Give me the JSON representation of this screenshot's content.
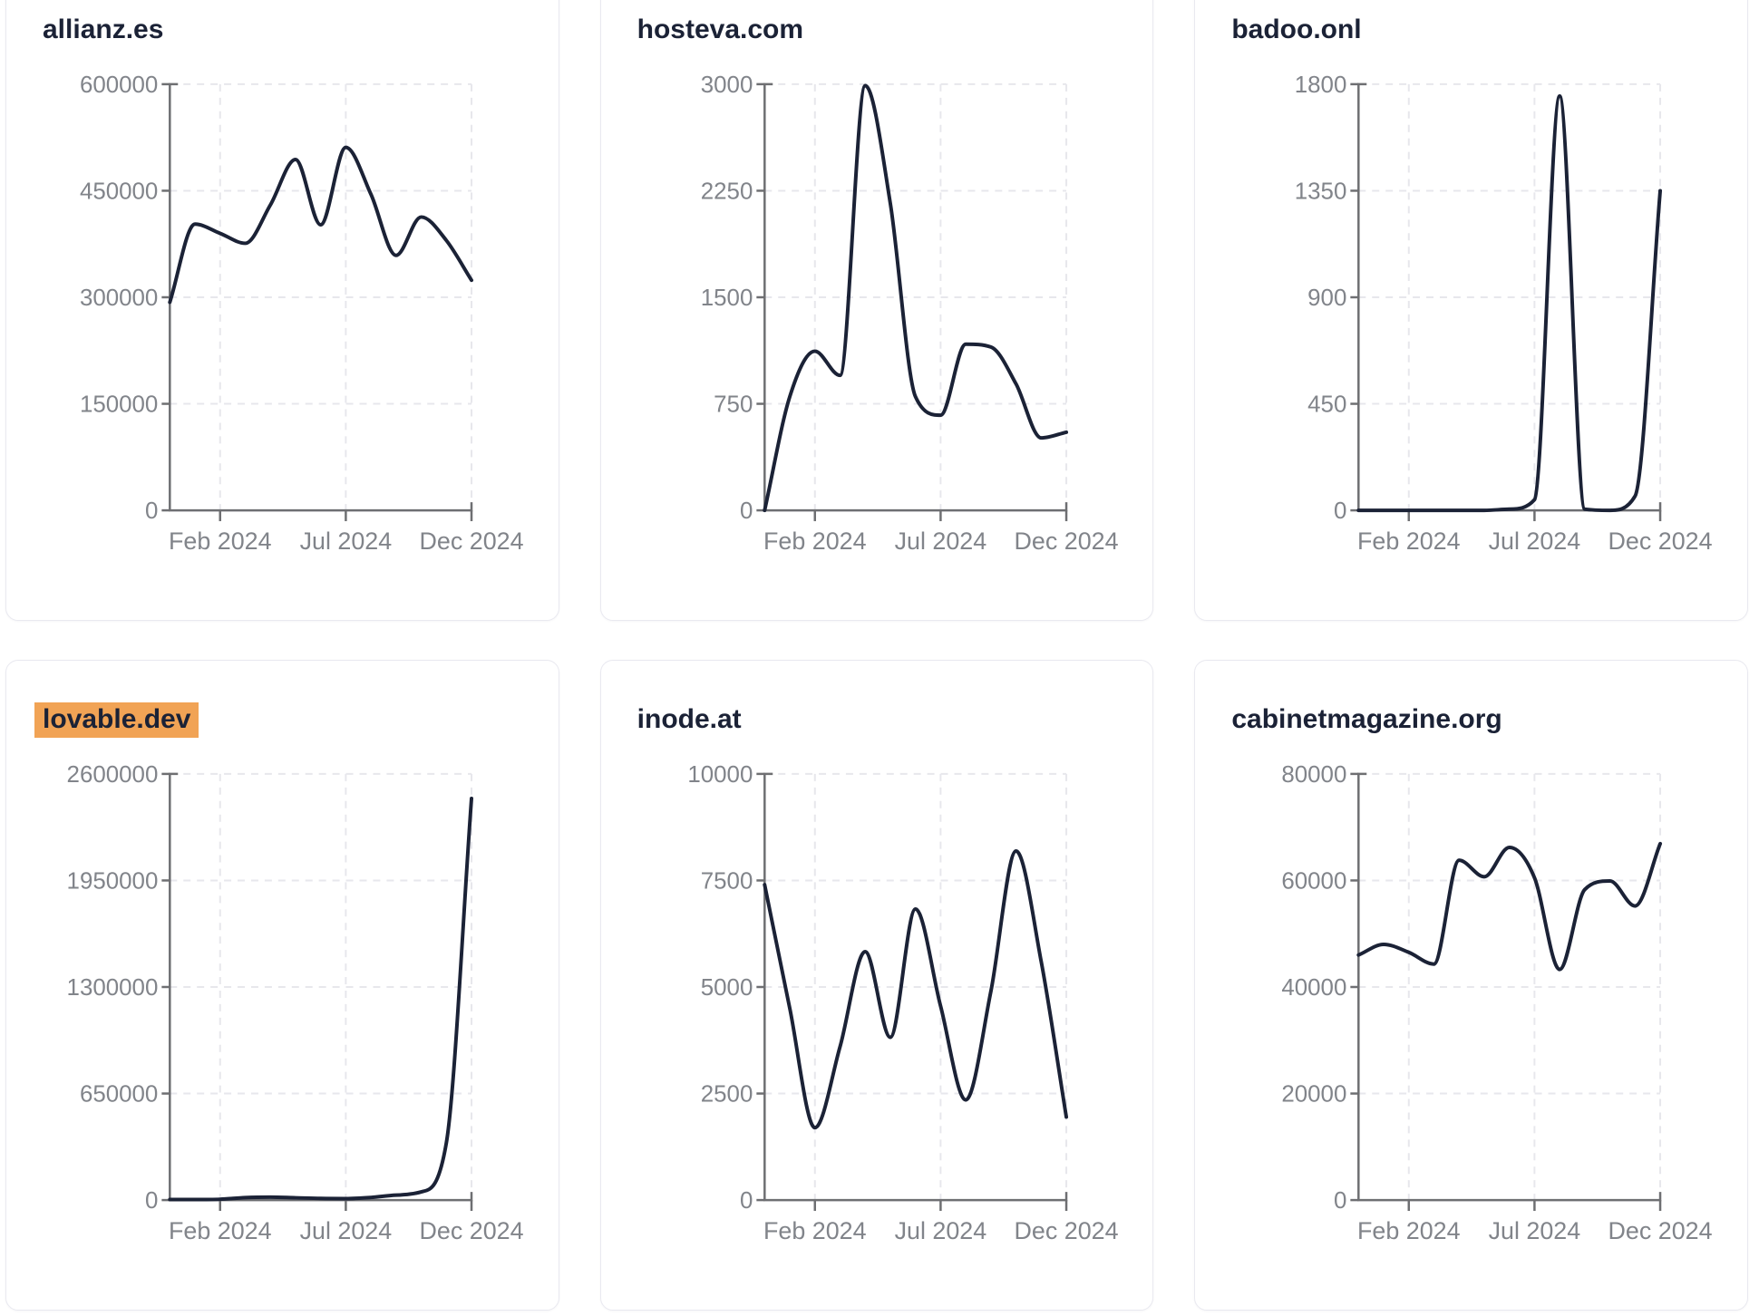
{
  "theme": {
    "background": "#ffffff",
    "card_border": "#e9e9f0",
    "title_color": "#1b2236",
    "line_color": "#1b2236",
    "axis_color": "#6e6f72",
    "tick_label_color": "#81848a",
    "grid_color": "#e7e7ec",
    "highlight_color": "#f1a355"
  },
  "x_axis": {
    "months": [
      "Dec 2023",
      "Jan 2024",
      "Feb 2024",
      "Mar 2024",
      "Apr 2024",
      "May 2024",
      "Jun 2024",
      "Jul 2024",
      "Aug 2024",
      "Sep 2024",
      "Oct 2024",
      "Nov 2024",
      "Dec 2024"
    ],
    "tick_labels": [
      "Feb 2024",
      "Jul 2024",
      "Dec 2024"
    ],
    "tick_positions": [
      2,
      7,
      12
    ]
  },
  "chart_data": [
    {
      "type": "line",
      "title": "allianz.es",
      "highlighted": false,
      "x": [
        "Dec 2023",
        "Jan 2024",
        "Feb 2024",
        "Mar 2024",
        "Apr 2024",
        "May 2024",
        "Jun 2024",
        "Jul 2024",
        "Aug 2024",
        "Sep 2024",
        "Oct 2024",
        "Nov 2024",
        "Dec 2024"
      ],
      "values": [
        293000,
        403000,
        390000,
        376000,
        430000,
        494000,
        402000,
        511000,
        445000,
        359000,
        413000,
        380000,
        324000
      ],
      "ylim": [
        0,
        600000
      ],
      "y_ticks": [
        0,
        150000,
        300000,
        450000,
        600000
      ],
      "x_tick_labels": [
        "Feb 2024",
        "Jul 2024",
        "Dec 2024"
      ],
      "x_tick_positions": [
        2,
        7,
        12
      ],
      "grid": "dashed",
      "legend": "none"
    },
    {
      "type": "line",
      "title": "hosteva.com",
      "highlighted": false,
      "x": [
        "Dec 2023",
        "Jan 2024",
        "Feb 2024",
        "Mar 2024",
        "Apr 2024",
        "May 2024",
        "Jun 2024",
        "Jul 2024",
        "Aug 2024",
        "Sep 2024",
        "Oct 2024",
        "Nov 2024",
        "Dec 2024"
      ],
      "values": [
        0,
        800,
        1120,
        950,
        2990,
        2160,
        800,
        670,
        1170,
        1150,
        890,
        510,
        550
      ],
      "ylim": [
        0,
        3000
      ],
      "y_ticks": [
        0,
        750,
        1500,
        2250,
        3000
      ],
      "x_tick_labels": [
        "Feb 2024",
        "Jul 2024",
        "Dec 2024"
      ],
      "x_tick_positions": [
        2,
        7,
        12
      ],
      "grid": "dashed",
      "legend": "none"
    },
    {
      "type": "line",
      "title": "badoo.onl",
      "highlighted": false,
      "x": [
        "Dec 2023",
        "Jan 2024",
        "Feb 2024",
        "Mar 2024",
        "Apr 2024",
        "May 2024",
        "Jun 2024",
        "Jul 2024",
        "Aug 2024",
        "Sep 2024",
        "Oct 2024",
        "Nov 2024",
        "Dec 2024"
      ],
      "values": [
        0,
        0,
        0,
        0,
        0,
        0,
        5,
        45,
        1750,
        5,
        0,
        60,
        1350
      ],
      "ylim": [
        0,
        1800
      ],
      "y_ticks": [
        0,
        450,
        900,
        1350,
        1800
      ],
      "x_tick_labels": [
        "Feb 2024",
        "Jul 2024",
        "Dec 2024"
      ],
      "x_tick_positions": [
        2,
        7,
        12
      ],
      "grid": "dashed",
      "legend": "none"
    },
    {
      "type": "line",
      "title": "lovable.dev",
      "highlighted": true,
      "x": [
        "Dec 2023",
        "Jan 2024",
        "Feb 2024",
        "Mar 2024",
        "Apr 2024",
        "May 2024",
        "Jun 2024",
        "Jul 2024",
        "Aug 2024",
        "Sep 2024",
        "Oct 2024",
        "Nov 2024",
        "Dec 2024"
      ],
      "values": [
        3000,
        3000,
        5000,
        15000,
        18000,
        14000,
        10000,
        9000,
        16000,
        30000,
        50000,
        350000,
        2450000
      ],
      "ylim": [
        0,
        2600000
      ],
      "y_ticks": [
        0,
        650000,
        1300000,
        1950000,
        2600000
      ],
      "x_tick_labels": [
        "Feb 2024",
        "Jul 2024",
        "Dec 2024"
      ],
      "x_tick_positions": [
        2,
        7,
        12
      ],
      "grid": "dashed",
      "legend": "none"
    },
    {
      "type": "line",
      "title": "inode.at",
      "highlighted": false,
      "x": [
        "Dec 2023",
        "Jan 2024",
        "Feb 2024",
        "Mar 2024",
        "Apr 2024",
        "May 2024",
        "Jun 2024",
        "Jul 2024",
        "Aug 2024",
        "Sep 2024",
        "Oct 2024",
        "Nov 2024",
        "Dec 2024"
      ],
      "values": [
        7400,
        4500,
        1700,
        3600,
        5830,
        3820,
        6830,
        4550,
        2350,
        4900,
        8190,
        5600,
        1950
      ],
      "ylim": [
        0,
        10000
      ],
      "y_ticks": [
        0,
        2500,
        5000,
        7500,
        10000
      ],
      "x_tick_labels": [
        "Feb 2024",
        "Jul 2024",
        "Dec 2024"
      ],
      "x_tick_positions": [
        2,
        7,
        12
      ],
      "grid": "dashed",
      "legend": "none"
    },
    {
      "type": "line",
      "title": "cabinetmagazine.org",
      "highlighted": false,
      "x": [
        "Dec 2023",
        "Jan 2024",
        "Feb 2024",
        "Mar 2024",
        "Apr 2024",
        "May 2024",
        "Jun 2024",
        "Jul 2024",
        "Aug 2024",
        "Sep 2024",
        "Oct 2024",
        "Nov 2024",
        "Dec 2024"
      ],
      "values": [
        46000,
        48000,
        46500,
        44300,
        63800,
        60700,
        66200,
        60500,
        43300,
        58300,
        59900,
        55200,
        66900
      ],
      "ylim": [
        0,
        80000
      ],
      "y_ticks": [
        0,
        20000,
        40000,
        60000,
        80000
      ],
      "x_tick_labels": [
        "Feb 2024",
        "Jul 2024",
        "Dec 2024"
      ],
      "x_tick_positions": [
        2,
        7,
        12
      ],
      "grid": "dashed",
      "legend": "none"
    }
  ]
}
